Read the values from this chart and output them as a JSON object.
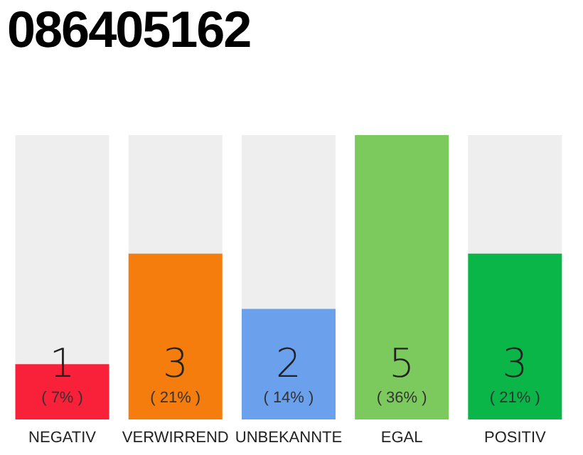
{
  "chart_data": {
    "type": "bar",
    "title": "086405162",
    "categories": [
      "NEGATIV",
      "VERWIRREND",
      "UNBEKANNTE",
      "EGAL",
      "POSITIV"
    ],
    "values": [
      7,
      21,
      14,
      36,
      21
    ],
    "colors": [
      "#f9203a",
      "#f47d0e",
      "#6aa0ec",
      "#7cca5e",
      "#0ab648"
    ],
    "value_labels": [
      "( 7% )",
      "( 21% )",
      "( 14% )",
      "( 36% )",
      "( 21% )"
    ],
    "annotations": [
      "1",
      "3",
      "2",
      "5",
      "3"
    ]
  }
}
